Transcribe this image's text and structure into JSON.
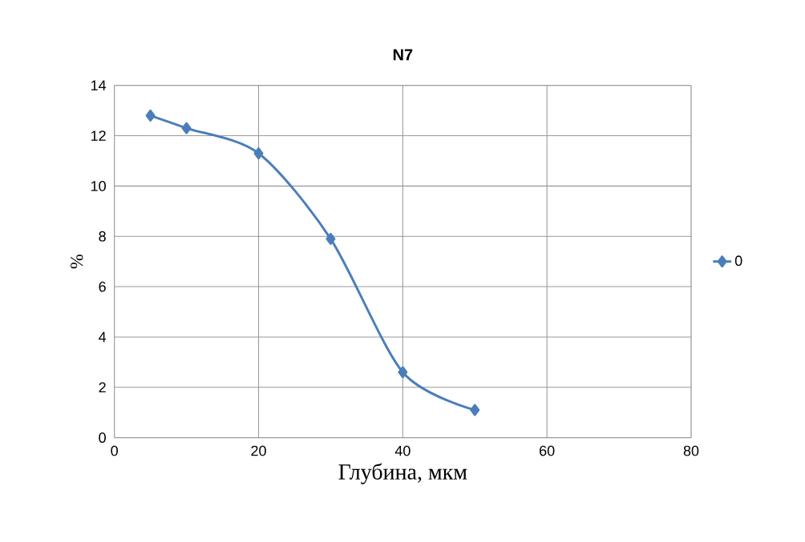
{
  "chart_data": {
    "type": "line",
    "title": "N7",
    "xlabel": "Глубина, мкм",
    "ylabel": "%",
    "x": [
      5,
      10,
      20,
      30,
      40,
      50
    ],
    "series": [
      {
        "name": "0",
        "color": "#4a7ebb",
        "values": [
          12.8,
          12.3,
          11.3,
          7.9,
          2.6,
          1.1
        ]
      }
    ],
    "xlim": [
      0,
      80
    ],
    "xticks": [
      0,
      20,
      40,
      60,
      80
    ],
    "ylim": [
      0,
      14
    ],
    "yticks": [
      0,
      2,
      4,
      6,
      8,
      10,
      12,
      14
    ],
    "grid": true,
    "legend": "right",
    "marker": "diamond",
    "line_style": "solid"
  }
}
